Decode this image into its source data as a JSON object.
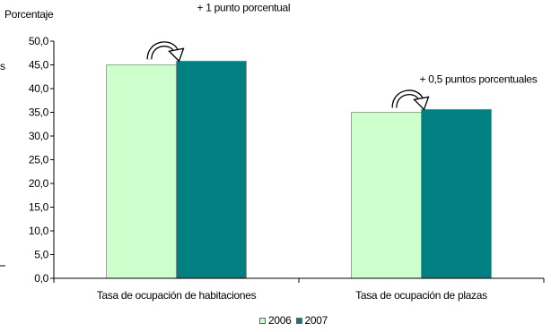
{
  "chart_data": {
    "type": "bar",
    "ylabel": "Porcentaje",
    "categories": [
      "Tasa de ocupación de habitaciones",
      "Tasa de ocupación de plazas"
    ],
    "series": [
      {
        "name": "2006",
        "values": [
          45.0,
          35.0
        ],
        "color": "#ccffcc"
      },
      {
        "name": "2007",
        "values": [
          45.8,
          35.6
        ],
        "color": "#008080"
      }
    ],
    "ylim": [
      0,
      50
    ],
    "yticks": [
      "0,0",
      "5,0",
      "10,0",
      "15,0",
      "20,0",
      "25,0",
      "30,0",
      "35,0",
      "40,0",
      "45,0",
      "50,0"
    ],
    "annotations": [
      "+ 1 punto porcentual",
      "+ 0,5 puntos porcentuales"
    ],
    "legend_position": "bottom",
    "grid": false
  }
}
